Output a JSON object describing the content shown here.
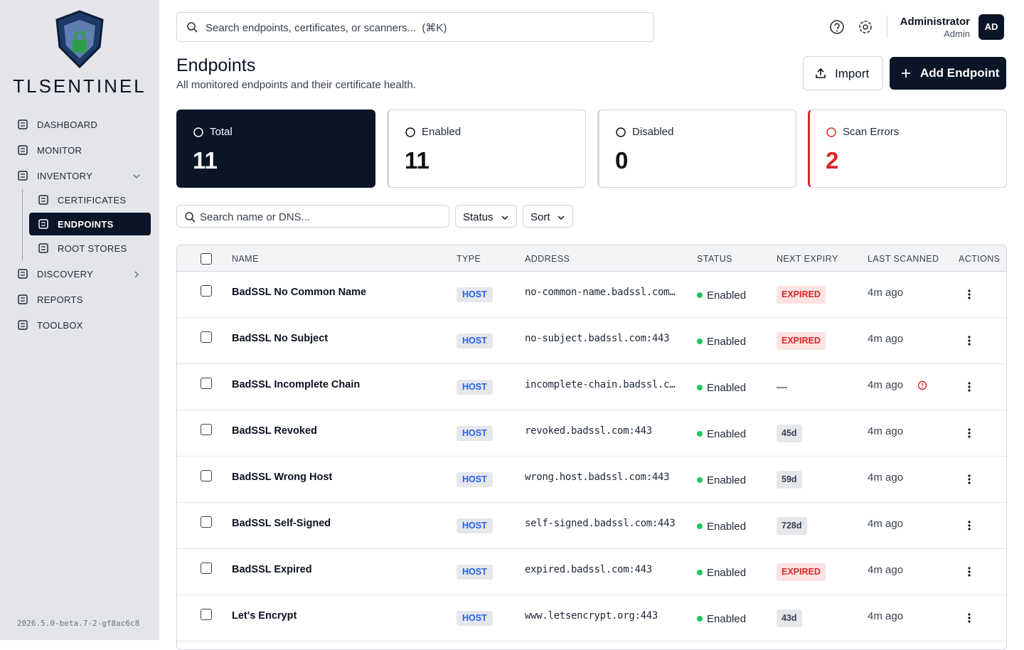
{
  "brand": {
    "name": "TLSENTINEL"
  },
  "nav": {
    "items": [
      {
        "label": "DASHBOARD",
        "level": 1
      },
      {
        "label": "MONITOR",
        "level": 1
      },
      {
        "label": "INVENTORY",
        "level": 1,
        "chevron": "down"
      },
      {
        "label": "CERTIFICATES",
        "level": 2
      },
      {
        "label": "ENDPOINTS",
        "level": 2,
        "active": true
      },
      {
        "label": "ROOT STORES",
        "level": 2
      },
      {
        "label": "DISCOVERY",
        "level": 1,
        "chevron": "right"
      },
      {
        "label": "REPORTS",
        "level": 1
      },
      {
        "label": "TOOLBOX",
        "level": 1
      }
    ]
  },
  "version": "2026.5.0-beta.7-2-gf8ac6c8",
  "topbar": {
    "search_placeholder": "Search endpoints, certificates, or scanners...  (⌘K)",
    "user": {
      "name": "Administrator",
      "role": "Admin",
      "initials": "AD"
    }
  },
  "header": {
    "title": "Endpoints",
    "subtitle": "All monitored endpoints and their certificate health.",
    "buttons": [
      "Import",
      "Add Endpoint"
    ]
  },
  "stats": [
    {
      "label": "Total",
      "value": 11,
      "tone": "dark"
    },
    {
      "label": "Enabled",
      "value": 11,
      "tone": "light"
    },
    {
      "label": "Disabled",
      "value": 0,
      "tone": "light"
    },
    {
      "label": "Scan Errors",
      "value": 2,
      "tone": "danger"
    }
  ],
  "filters": {
    "search_placeholder": "Search name or DNS...",
    "dropdowns": [
      "Status",
      "Sort"
    ]
  },
  "table": {
    "columns": [
      "NAME",
      "TYPE",
      "ADDRESS",
      "STATUS",
      "NEXT EXPIRY",
      "LAST SCANNED",
      "ACTIONS"
    ],
    "rows": [
      {
        "name": "BadSSL No Common Name",
        "type": "HOST",
        "address": "no-common-name.badssl.com…",
        "status": "Enabled",
        "expiry": "EXPIRED",
        "expiry_tone": "danger",
        "last_scanned": "4m ago"
      },
      {
        "name": "BadSSL No Subject",
        "type": "HOST",
        "address": "no-subject.badssl.com:443",
        "status": "Enabled",
        "expiry": "EXPIRED",
        "expiry_tone": "danger",
        "last_scanned": "4m ago"
      },
      {
        "name": "BadSSL Incomplete Chain",
        "type": "HOST",
        "address": "incomplete-chain.badssl.c…",
        "status": "Enabled",
        "expiry": "—",
        "expiry_tone": "plain",
        "last_scanned": "4m ago",
        "scan_error": true
      },
      {
        "name": "BadSSL Revoked",
        "type": "HOST",
        "address": "revoked.badssl.com:443",
        "status": "Enabled",
        "expiry": "45d",
        "expiry_tone": "neutral",
        "last_scanned": "4m ago"
      },
      {
        "name": "BadSSL Wrong Host",
        "type": "HOST",
        "address": "wrong.host.badssl.com:443",
        "status": "Enabled",
        "expiry": "59d",
        "expiry_tone": "neutral",
        "last_scanned": "4m ago"
      },
      {
        "name": "BadSSL Self-Signed",
        "type": "HOST",
        "address": "self-signed.badssl.com:443",
        "status": "Enabled",
        "expiry": "728d",
        "expiry_tone": "neutral",
        "last_scanned": "4m ago"
      },
      {
        "name": "BadSSL Expired",
        "type": "HOST",
        "address": "expired.badssl.com:443",
        "status": "Enabled",
        "expiry": "EXPIRED",
        "expiry_tone": "danger",
        "last_scanned": "4m ago"
      },
      {
        "name": "Let's Encrypt",
        "type": "HOST",
        "address": "www.letsencrypt.org:443",
        "status": "Enabled",
        "expiry": "43d",
        "expiry_tone": "neutral",
        "last_scanned": "4m ago"
      }
    ]
  }
}
